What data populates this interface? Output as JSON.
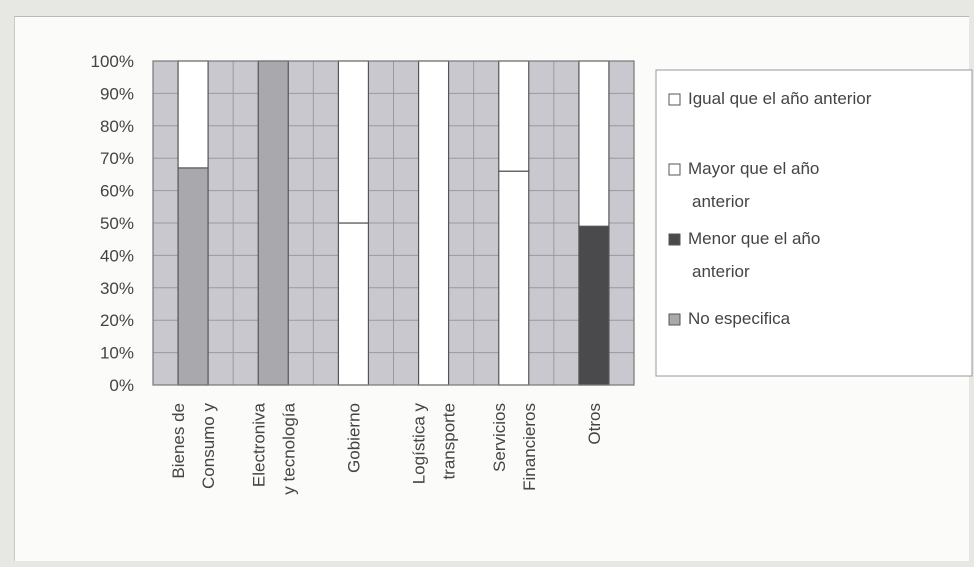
{
  "chart_data": {
    "type": "bar",
    "stacked": true,
    "percent": true,
    "title": "",
    "xlabel": "",
    "ylabel": "",
    "ylim": [
      0,
      100
    ],
    "yticks": [
      "0%",
      "10%",
      "20%",
      "30%",
      "40%",
      "50%",
      "60%",
      "70%",
      "80%",
      "90%",
      "100%"
    ],
    "grid": true,
    "legend_position": "right",
    "categories": [
      [
        "Bienes de",
        "Consumo y"
      ],
      [
        "Electroniva",
        "y tecnología"
      ],
      [
        "Gobierno"
      ],
      [
        "Logística y",
        "transporte"
      ],
      [
        "Servicios",
        "Financieros"
      ],
      [
        "Otros"
      ]
    ],
    "series": [
      {
        "name": "No especifica",
        "color": "#a9a9ad",
        "values": [
          67,
          100,
          0,
          0,
          0,
          0
        ]
      },
      {
        "name": "Menor que  el año anterior",
        "color": "#4a4a4c",
        "values": [
          0,
          0,
          0,
          0,
          0,
          49
        ]
      },
      {
        "name": "Mayor que el año anterior",
        "color": "#ffffff",
        "values": [
          0,
          0,
          50,
          0,
          66,
          0
        ]
      },
      {
        "name": "Igual que el año anterior",
        "color": "#ffffff",
        "values": [
          33,
          0,
          50,
          100,
          34,
          51
        ]
      }
    ],
    "legend_order": [
      3,
      2,
      1,
      0
    ],
    "legend_lines": [
      [
        "Igual que el año anterior"
      ],
      [
        "Mayor que el año",
        "anterior"
      ],
      [
        "Menor que  el año",
        "anterior"
      ],
      [
        "No especifica"
      ]
    ],
    "plot_background": "#c8c8ce",
    "gridline_color": "#9a9a9e"
  }
}
